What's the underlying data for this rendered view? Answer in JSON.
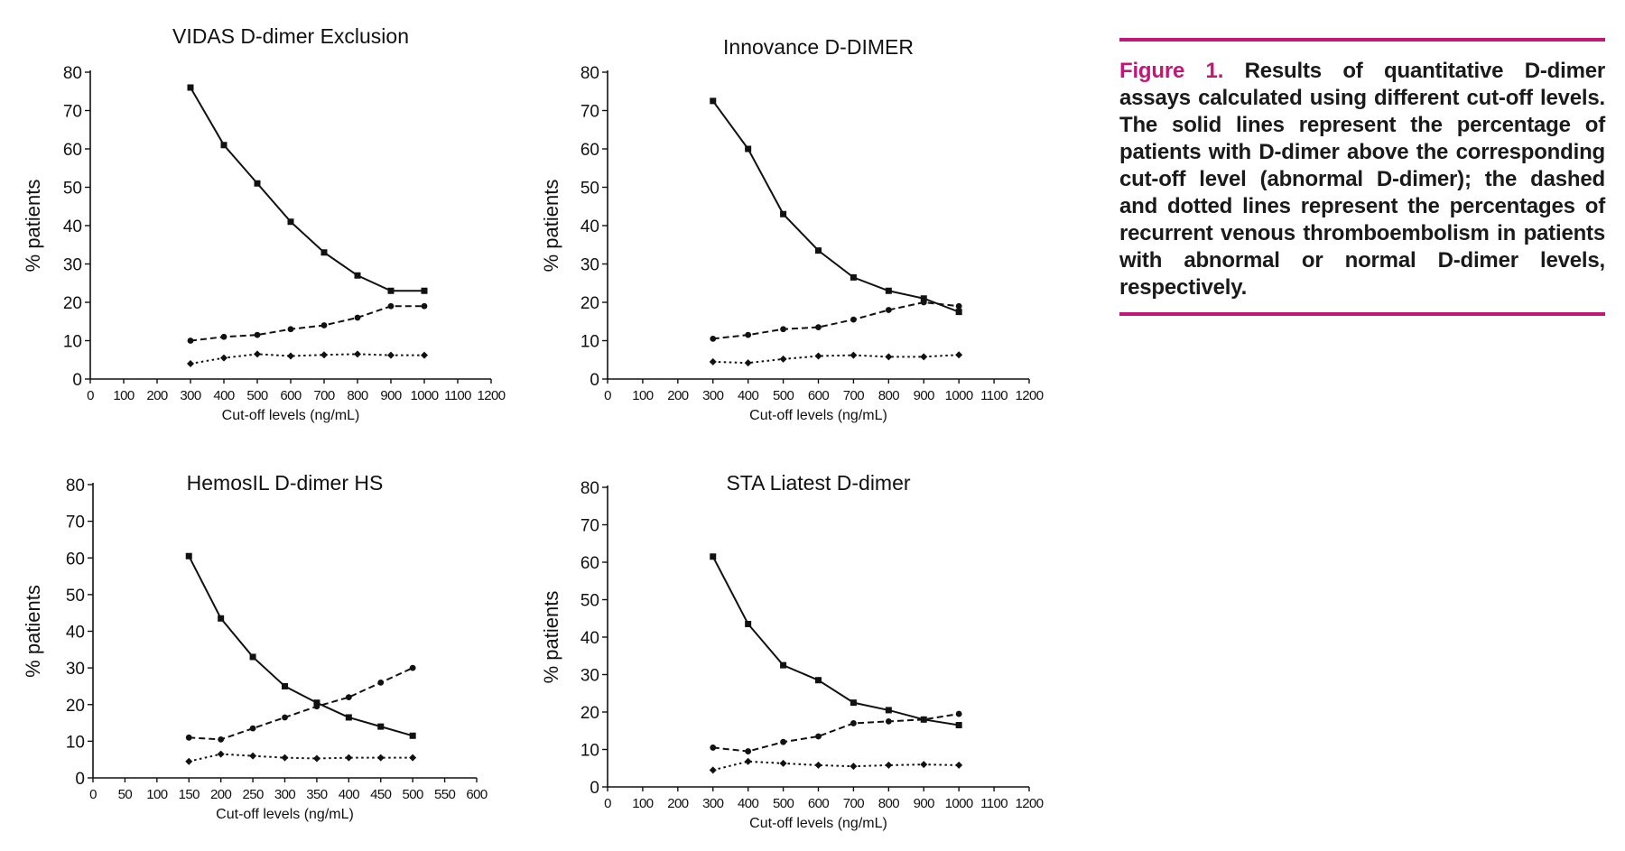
{
  "figure": {
    "label": "Figure 1.",
    "caption": "Results of quantitative D-dimer assays calculated using different cut-off levels. The solid lines represent the percentage of patients with D-dimer above the corresponding cut-off level (abnormal D-dimer); the dashed and dotted lines represent the percentages of recurrent venous thromboembolism in patients with abnormal or normal D-dimer levels, respectively.",
    "accent_color": "#c2177a"
  },
  "chart_data": [
    {
      "type": "line",
      "title": "VIDAS D-dimer Exclusion",
      "xlabel": "Cut-off levels (ng/mL)",
      "ylabel": "% patients",
      "xlim": [
        0,
        1200
      ],
      "ylim": [
        0,
        80
      ],
      "x_ticks": [
        0,
        100,
        200,
        300,
        400,
        500,
        600,
        700,
        800,
        900,
        1000,
        1100,
        1200
      ],
      "y_ticks": [
        0,
        10,
        20,
        30,
        40,
        50,
        60,
        70,
        80
      ],
      "x": [
        300,
        400,
        500,
        600,
        700,
        800,
        900,
        1000
      ],
      "series": [
        {
          "name": "Abnormal D-dimer (% patients)",
          "style": "solid",
          "marker": "square",
          "values": [
            76,
            61,
            51,
            41,
            33,
            27,
            23,
            23
          ]
        },
        {
          "name": "Recurrent VTE, abnormal D-dimer",
          "style": "dashed",
          "marker": "circle",
          "values": [
            10,
            11,
            11.5,
            13,
            14,
            16,
            19,
            19
          ]
        },
        {
          "name": "Recurrent VTE, normal D-dimer",
          "style": "dotted",
          "marker": "diamond",
          "values": [
            4,
            5.5,
            6.5,
            6,
            6.3,
            6.5,
            6.2,
            6.2
          ]
        }
      ]
    },
    {
      "type": "line",
      "title": "Innovance D-DIMER",
      "xlabel": "Cut-off levels (ng/mL)",
      "ylabel": "% patients",
      "xlim": [
        0,
        1200
      ],
      "ylim": [
        0,
        80
      ],
      "x_ticks": [
        0,
        100,
        200,
        300,
        400,
        500,
        600,
        700,
        800,
        900,
        1000,
        1100,
        1200
      ],
      "y_ticks": [
        0,
        10,
        20,
        30,
        40,
        50,
        60,
        70,
        80
      ],
      "x": [
        300,
        400,
        500,
        600,
        700,
        800,
        900,
        1000
      ],
      "series": [
        {
          "name": "Abnormal D-dimer (% patients)",
          "style": "solid",
          "marker": "square",
          "values": [
            72.5,
            60,
            43,
            33.5,
            26.5,
            23,
            21,
            17.5
          ]
        },
        {
          "name": "Recurrent VTE, abnormal D-dimer",
          "style": "dashed",
          "marker": "circle",
          "values": [
            10.5,
            11.5,
            13,
            13.5,
            15.5,
            18,
            20,
            19
          ]
        },
        {
          "name": "Recurrent VTE, normal D-dimer",
          "style": "dotted",
          "marker": "diamond",
          "values": [
            4.5,
            4.2,
            5.2,
            6,
            6.2,
            5.8,
            5.8,
            6.3
          ]
        }
      ]
    },
    {
      "type": "line",
      "title": "HemosIL D-dimer HS",
      "xlabel": "Cut-off levels (ng/mL)",
      "ylabel": "% patients",
      "xlim": [
        0,
        600
      ],
      "ylim": [
        0,
        80
      ],
      "x_ticks": [
        0,
        50,
        100,
        150,
        200,
        250,
        300,
        350,
        400,
        450,
        500,
        550,
        600
      ],
      "y_ticks": [
        0,
        10,
        20,
        30,
        40,
        50,
        60,
        70,
        80
      ],
      "x": [
        150,
        200,
        250,
        300,
        350,
        400,
        450,
        500
      ],
      "series": [
        {
          "name": "Abnormal D-dimer (% patients)",
          "style": "solid",
          "marker": "square",
          "values": [
            60.5,
            43.5,
            33,
            25,
            20.5,
            16.5,
            14,
            11.5
          ]
        },
        {
          "name": "Recurrent VTE, abnormal D-dimer",
          "style": "dashed",
          "marker": "circle",
          "values": [
            11,
            10.5,
            13.5,
            16.5,
            19.5,
            22,
            26,
            30
          ]
        },
        {
          "name": "Recurrent VTE, normal D-dimer",
          "style": "dotted",
          "marker": "diamond",
          "values": [
            4.5,
            6.5,
            6,
            5.5,
            5.3,
            5.5,
            5.5,
            5.5
          ]
        }
      ]
    },
    {
      "type": "line",
      "title": "STA Liatest D-dimer",
      "xlabel": "Cut-off levels (ng/mL)",
      "ylabel": "% patients",
      "xlim": [
        0,
        1200
      ],
      "ylim": [
        0,
        80
      ],
      "x_ticks": [
        0,
        100,
        200,
        300,
        400,
        500,
        600,
        700,
        800,
        900,
        1000,
        1100,
        1200
      ],
      "y_ticks": [
        0,
        10,
        20,
        30,
        40,
        50,
        60,
        70,
        80
      ],
      "x": [
        300,
        400,
        500,
        600,
        700,
        800,
        900,
        1000
      ],
      "series": [
        {
          "name": "Abnormal D-dimer (% patients)",
          "style": "solid",
          "marker": "square",
          "values": [
            61.5,
            43.5,
            32.5,
            28.5,
            22.5,
            20.5,
            18,
            16.5
          ]
        },
        {
          "name": "Recurrent VTE, abnormal D-dimer",
          "style": "dashed",
          "marker": "circle",
          "values": [
            10.5,
            9.5,
            12,
            13.5,
            17,
            17.5,
            18,
            19.5
          ]
        },
        {
          "name": "Recurrent VTE, normal D-dimer",
          "style": "dotted",
          "marker": "diamond",
          "values": [
            4.5,
            6.8,
            6.3,
            5.8,
            5.5,
            5.8,
            6,
            5.8
          ]
        }
      ]
    }
  ]
}
